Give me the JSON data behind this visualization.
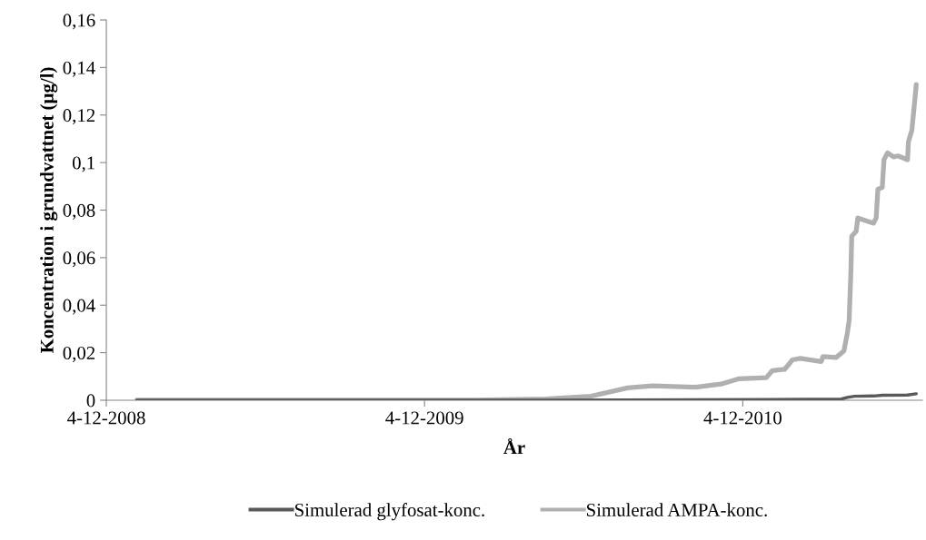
{
  "chart_data": {
    "type": "line",
    "xlabel": "År",
    "ylabel": "Koncentration i grundvattnet (µg/l)",
    "xlim": [
      "2008-12-04",
      "2011-06-28"
    ],
    "ylim": [
      0,
      0.16
    ],
    "xticks": [
      {
        "value": "2008-12-04",
        "label": "4-12-2008"
      },
      {
        "value": "2009-12-04",
        "label": "4-12-2009"
      },
      {
        "value": "2010-12-04",
        "label": "4-12-2010"
      }
    ],
    "yticks": [
      0,
      {
        "value": 0.02,
        "label": "0,02"
      },
      {
        "value": 0.04,
        "label": "0,04"
      },
      {
        "value": 0.06,
        "label": "0,06"
      },
      {
        "value": 0.08,
        "label": "0,08"
      },
      {
        "value": 0.1,
        "label": "0,1"
      },
      {
        "value": 0.12,
        "label": "0,12"
      },
      {
        "value": 0.14,
        "label": "0,14"
      },
      {
        "value": 0.16,
        "label": "0,16"
      }
    ],
    "grid": false,
    "legend": "bottom",
    "marker": "none",
    "line_style": "solid",
    "series": [
      {
        "name": "Simulerad glyfosat-konc.",
        "color": "#595959",
        "x": [
          "2009-01-08",
          "2010-04-22",
          "2011-01-07",
          "2011-03-27",
          "2011-04-03",
          "2011-04-11",
          "2011-05-03",
          "2011-05-13",
          "2011-06-11",
          "2011-06-21"
        ],
        "values": [
          0,
          0,
          0.0003,
          0.0005,
          0.0012,
          0.0017,
          0.0018,
          0.0021,
          0.0022,
          0.0027
        ]
      },
      {
        "name": "Simulerad AMPA-konc.",
        "color": "#b0b0b0",
        "x": [
          "2009-01-08",
          "2010-01-28",
          "2010-04-22",
          "2010-06-13",
          "2010-07-25",
          "2010-08-22",
          "2010-10-11",
          "2010-11-09",
          "2010-11-29",
          "2010-12-31",
          "2011-01-07",
          "2011-01-21",
          "2011-01-30",
          "2011-02-08",
          "2011-03-04",
          "2011-03-06",
          "2011-03-21",
          "2011-03-30",
          "2011-04-03",
          "2011-04-05",
          "2011-04-07",
          "2011-04-08",
          "2011-04-13",
          "2011-04-15",
          "2011-05-03",
          "2011-05-06",
          "2011-05-08",
          "2011-05-13",
          "2011-05-15",
          "2011-05-19",
          "2011-05-26",
          "2011-05-31",
          "2011-06-11",
          "2011-06-12",
          "2011-06-16",
          "2011-06-19",
          "2011-06-21"
        ],
        "values": [
          0,
          0,
          0.0005,
          0.0017,
          0.0052,
          0.0061,
          0.0055,
          0.0068,
          0.009,
          0.0095,
          0.0125,
          0.013,
          0.017,
          0.0176,
          0.0163,
          0.0184,
          0.018,
          0.0207,
          0.0284,
          0.0335,
          0.0538,
          0.069,
          0.071,
          0.0767,
          0.0745,
          0.0767,
          0.0888,
          0.0895,
          0.1012,
          0.1041,
          0.1024,
          0.1028,
          0.1012,
          0.1086,
          0.1137,
          0.1251,
          0.1328
        ]
      }
    ]
  }
}
